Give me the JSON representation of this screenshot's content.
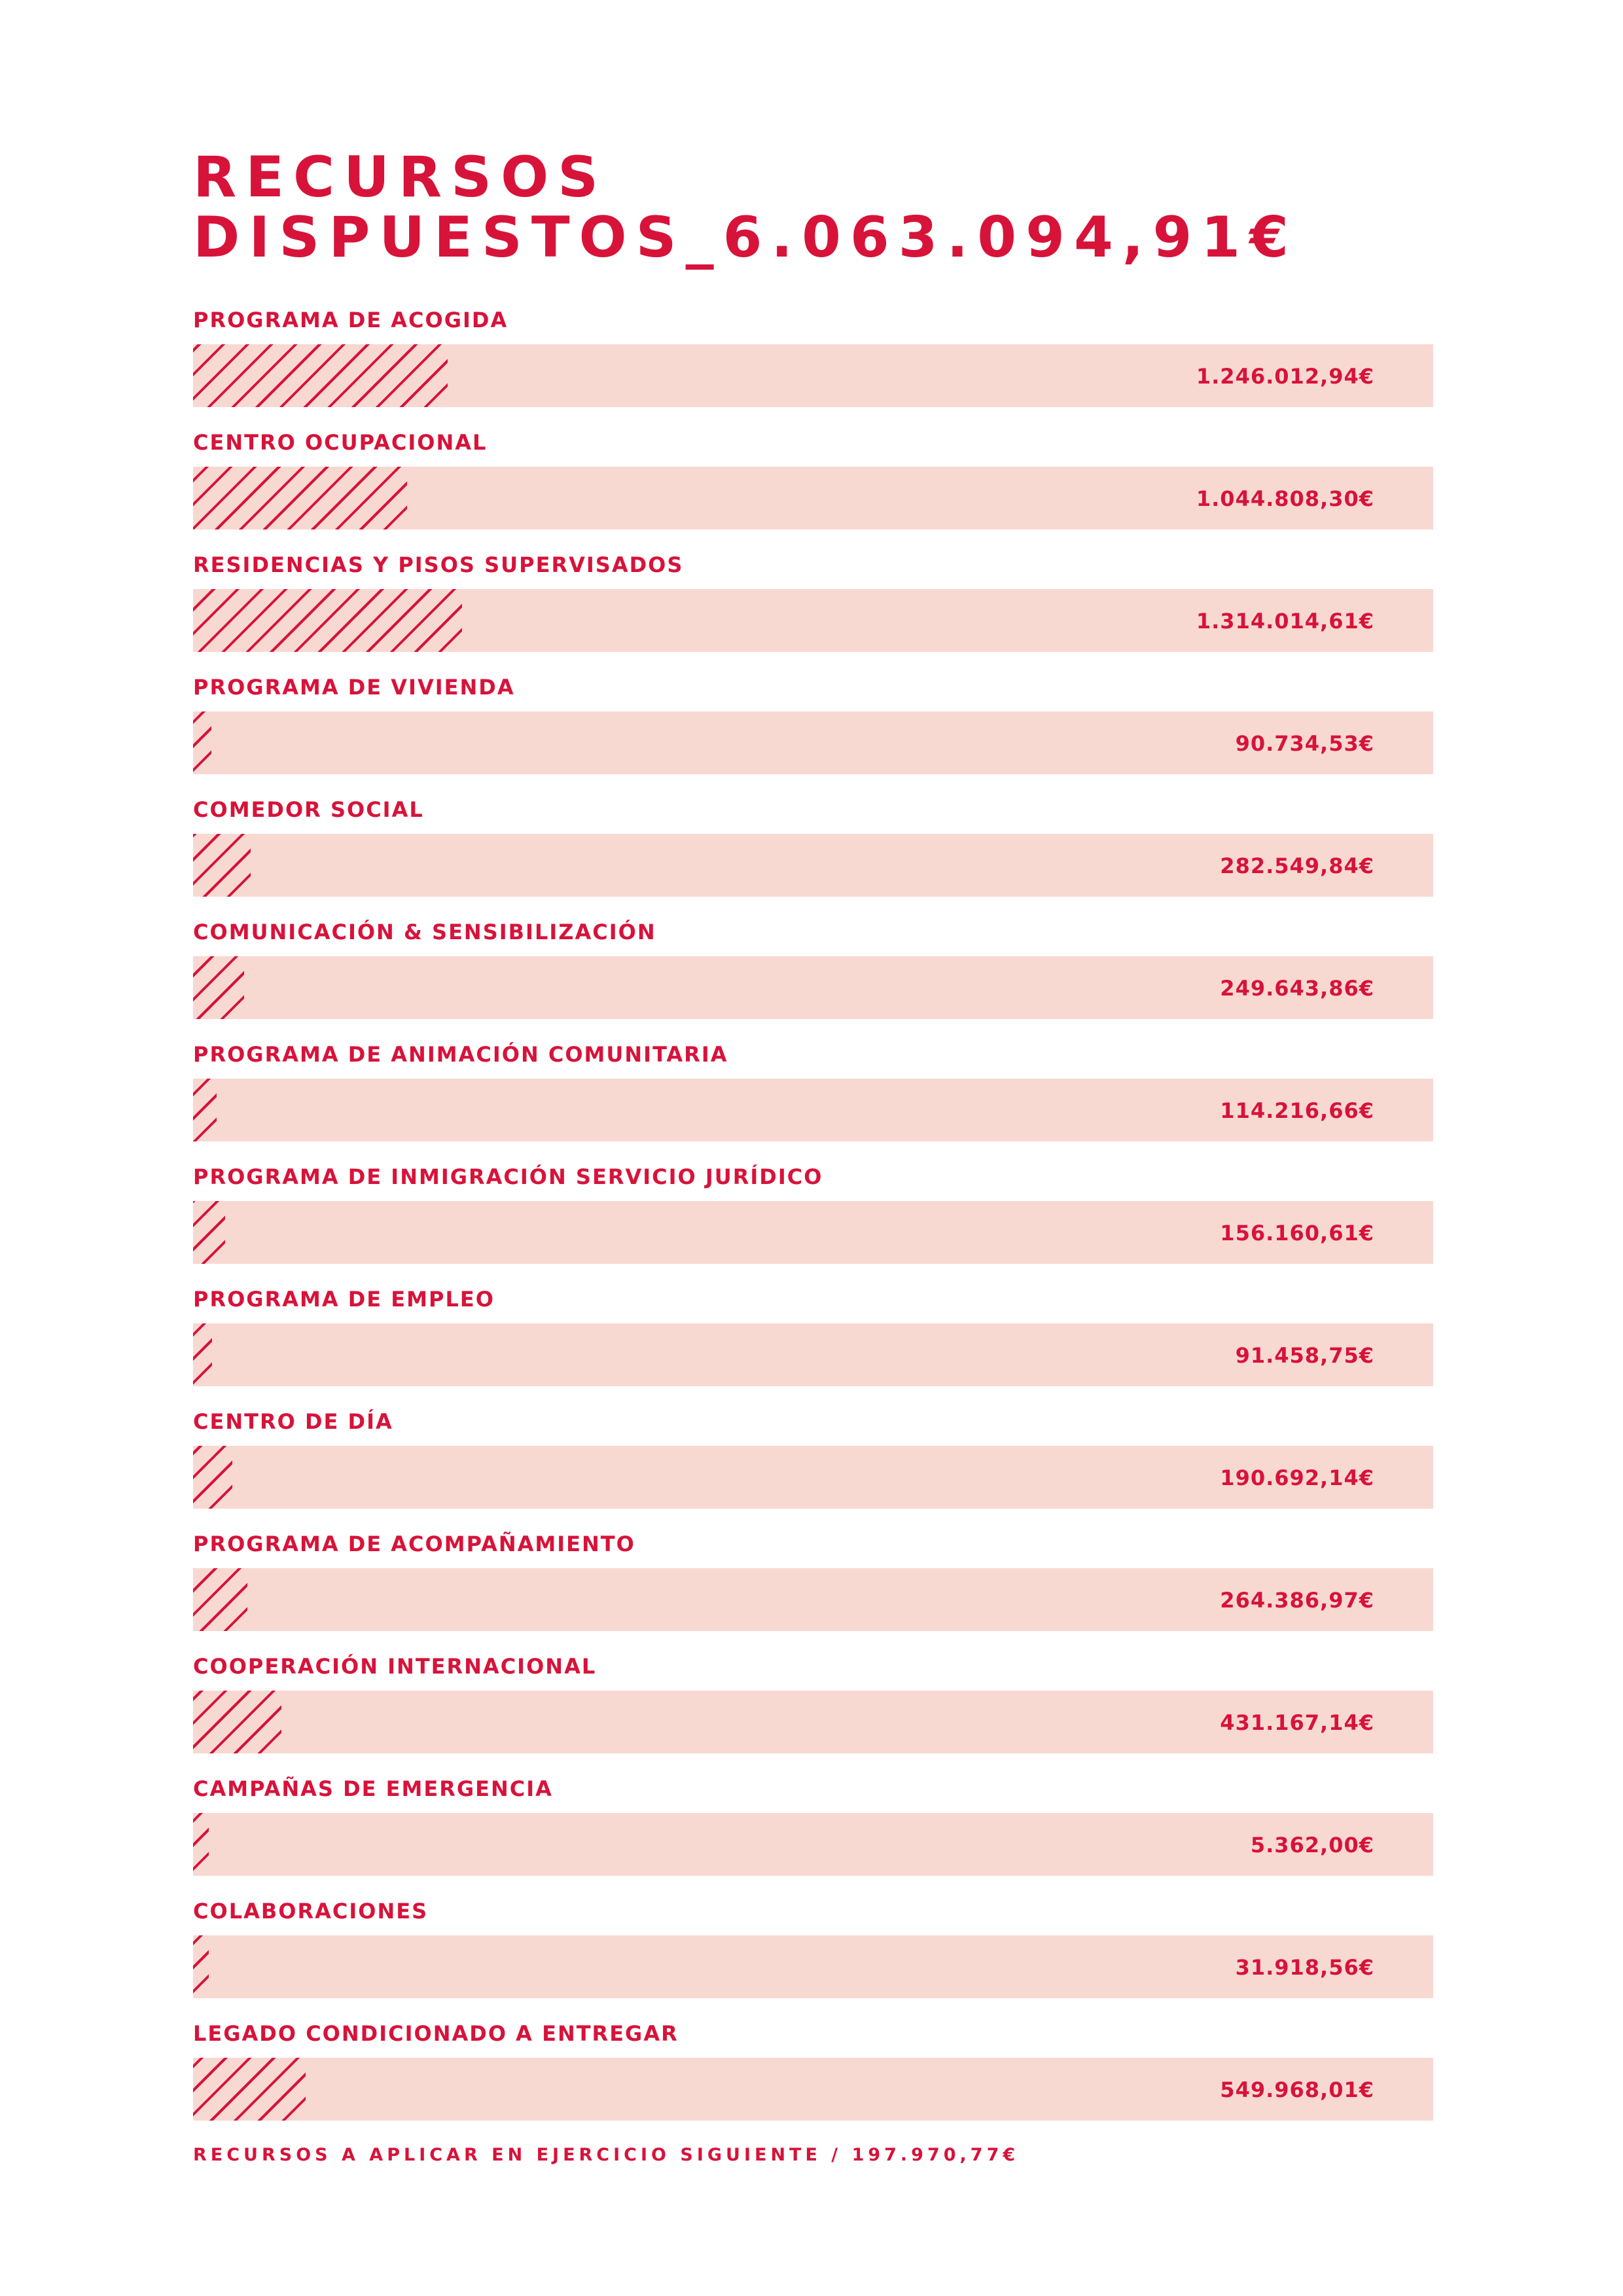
{
  "title_line1": "RECURSOS",
  "title_line2": "DISPUESTOS_6.063.094,91€",
  "footer": "RECURSOS A APLICAR EN EJERCICIO SIGUIENTE / 197.970,77€",
  "colors": {
    "accent": "#d7133a",
    "track": "#f8d9d2"
  },
  "chart_data": {
    "type": "bar",
    "orientation": "horizontal",
    "categories": [
      "PROGRAMA DE ACOGIDA",
      "CENTRO OCUPACIONAL",
      "RESIDENCIAS Y PISOS SUPERVISADOS",
      "PROGRAMA DE VIVIENDA",
      "COMEDOR SOCIAL",
      "COMUNICACIÓN & SENSIBILIZACIÓN",
      "PROGRAMA DE ANIMACIÓN COMUNITARIA",
      "PROGRAMA DE INMIGRACIÓN SERVICIO JURÍDICO",
      "PROGRAMA DE EMPLEO",
      "CENTRO DE DÍA",
      "PROGRAMA DE ACOMPAÑAMIENTO",
      "COOPERACIÓN INTERNACIONAL",
      "CAMPAÑAS DE EMERGENCIA",
      "COLABORACIONES",
      "LEGADO CONDICIONADO A ENTREGAR"
    ],
    "values": [
      1246012.94,
      1044808.3,
      1314014.61,
      90734.53,
      282549.84,
      249643.86,
      114216.66,
      156160.61,
      91458.75,
      190692.14,
      264386.97,
      431167.14,
      5362.0,
      31918.56,
      549968.01
    ],
    "value_labels": [
      "1.246.012,94€",
      "1.044.808,30€",
      "1.314.014,61€",
      "90.734,53€",
      "282.549,84€",
      "249.643,86€",
      "114.216,66€",
      "156.160,61€",
      "91.458,75€",
      "190.692,14€",
      "264.386,97€",
      "431.167,14€",
      "5.362,00€",
      "31.918,56€",
      "549.968,01€"
    ],
    "xlim": [
      0,
      6063094.91
    ]
  }
}
